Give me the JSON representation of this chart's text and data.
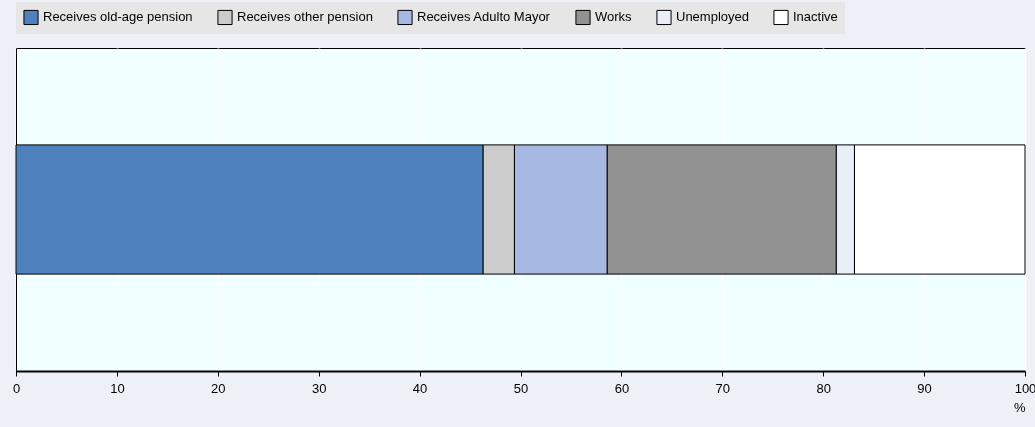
{
  "chart_data": {
    "type": "bar",
    "orientation": "horizontal",
    "stacked": true,
    "categories": [
      null
    ],
    "series": [
      {
        "name": "Receives old-age pension",
        "color": "#4e81bd",
        "values": [
          46.3
        ]
      },
      {
        "name": "Receives other pension",
        "color": "#cccccc",
        "values": [
          3.1
        ]
      },
      {
        "name": "Receives Adulto Mayor",
        "color": "#a7b9e3",
        "values": [
          9.2
        ]
      },
      {
        "name": "Works",
        "color": "#929292",
        "values": [
          22.7
        ]
      },
      {
        "name": "Unemployed",
        "color": "#eaeef8",
        "values": [
          1.8
        ]
      },
      {
        "name": "Inactive",
        "color": "#ffffff",
        "values": [
          16.9
        ]
      }
    ],
    "xlim": [
      0,
      100
    ],
    "xticks": [
      0,
      10,
      20,
      30,
      40,
      50,
      60,
      70,
      80,
      90,
      100
    ],
    "xlabel": "%",
    "grid": "x",
    "legend": "top"
  }
}
